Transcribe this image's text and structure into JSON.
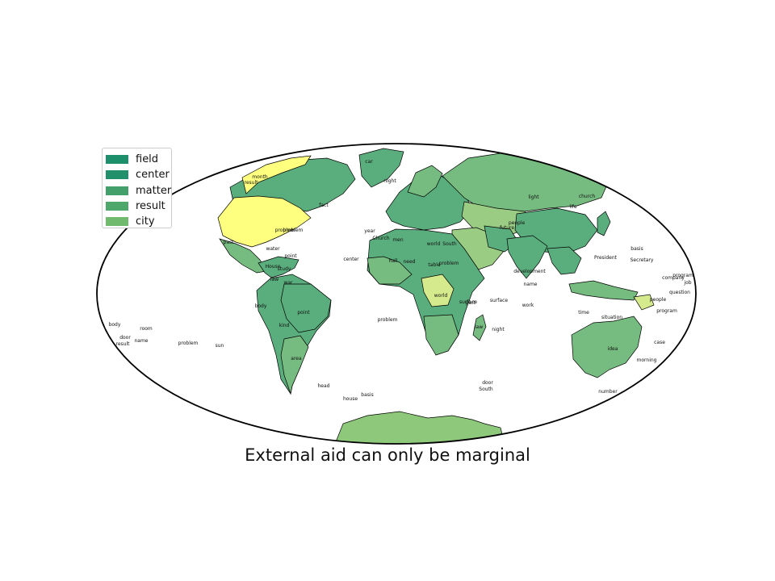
{
  "title": "External aid can only be marginal",
  "legend": {
    "items": [
      {
        "label": "field",
        "color": "#1d8f6a"
      },
      {
        "label": "center",
        "color": "#22916b"
      },
      {
        "label": "matter",
        "color": "#43a06a"
      },
      {
        "label": "result",
        "color": "#4ea76b"
      },
      {
        "label": "city",
        "color": "#6fba6c"
      }
    ]
  },
  "colors": {
    "ocean": "#ffffff",
    "outline": "#000000",
    "land_dark": "#5aad7c",
    "land_mid": "#76bb80",
    "land_light": "#9acc84",
    "highlight_yellow": "#ffff7f",
    "highlight_pale": "#d5ea8c"
  },
  "region_labels": [
    {
      "text": "car"
    },
    {
      "text": "month"
    },
    {
      "text": "result"
    },
    {
      "text": "fact"
    },
    {
      "text": "problem"
    },
    {
      "text": "past"
    },
    {
      "text": "water"
    },
    {
      "text": "point"
    },
    {
      "text": "House"
    },
    {
      "text": "study"
    },
    {
      "text": "law"
    },
    {
      "text": "war"
    },
    {
      "text": "body"
    },
    {
      "text": "point"
    },
    {
      "text": "kind"
    },
    {
      "text": "area"
    },
    {
      "text": "head"
    },
    {
      "text": "year"
    },
    {
      "text": "center"
    },
    {
      "text": "Church"
    },
    {
      "text": "men"
    },
    {
      "text": "world"
    },
    {
      "text": "South"
    },
    {
      "text": "problem"
    },
    {
      "text": "table"
    },
    {
      "text": "hall"
    },
    {
      "text": "need"
    },
    {
      "text": "world"
    },
    {
      "text": "part"
    },
    {
      "text": "night"
    },
    {
      "text": "law"
    },
    {
      "text": "problem"
    },
    {
      "text": "development"
    },
    {
      "text": "name"
    },
    {
      "text": "work"
    },
    {
      "text": "surface"
    },
    {
      "text": "church"
    },
    {
      "text": "life"
    },
    {
      "text": "people"
    },
    {
      "text": "future"
    },
    {
      "text": "time"
    },
    {
      "text": "President"
    },
    {
      "text": "basis"
    },
    {
      "text": "Secretary"
    },
    {
      "text": "company"
    },
    {
      "text": "program"
    },
    {
      "text": "job"
    },
    {
      "text": "question"
    },
    {
      "text": "people"
    },
    {
      "text": "program"
    },
    {
      "text": "situation"
    },
    {
      "text": "idea"
    },
    {
      "text": "morning"
    },
    {
      "text": "case"
    },
    {
      "text": "number"
    },
    {
      "text": "door"
    },
    {
      "text": "South"
    },
    {
      "text": "basis"
    },
    {
      "text": "house"
    },
    {
      "text": "body"
    },
    {
      "text": "room"
    },
    {
      "text": "door"
    },
    {
      "text": "result"
    },
    {
      "text": "name"
    },
    {
      "text": "problem"
    },
    {
      "text": "sun"
    },
    {
      "text": "problem"
    },
    {
      "text": "night"
    },
    {
      "text": "light"
    },
    {
      "text": "surface"
    }
  ]
}
